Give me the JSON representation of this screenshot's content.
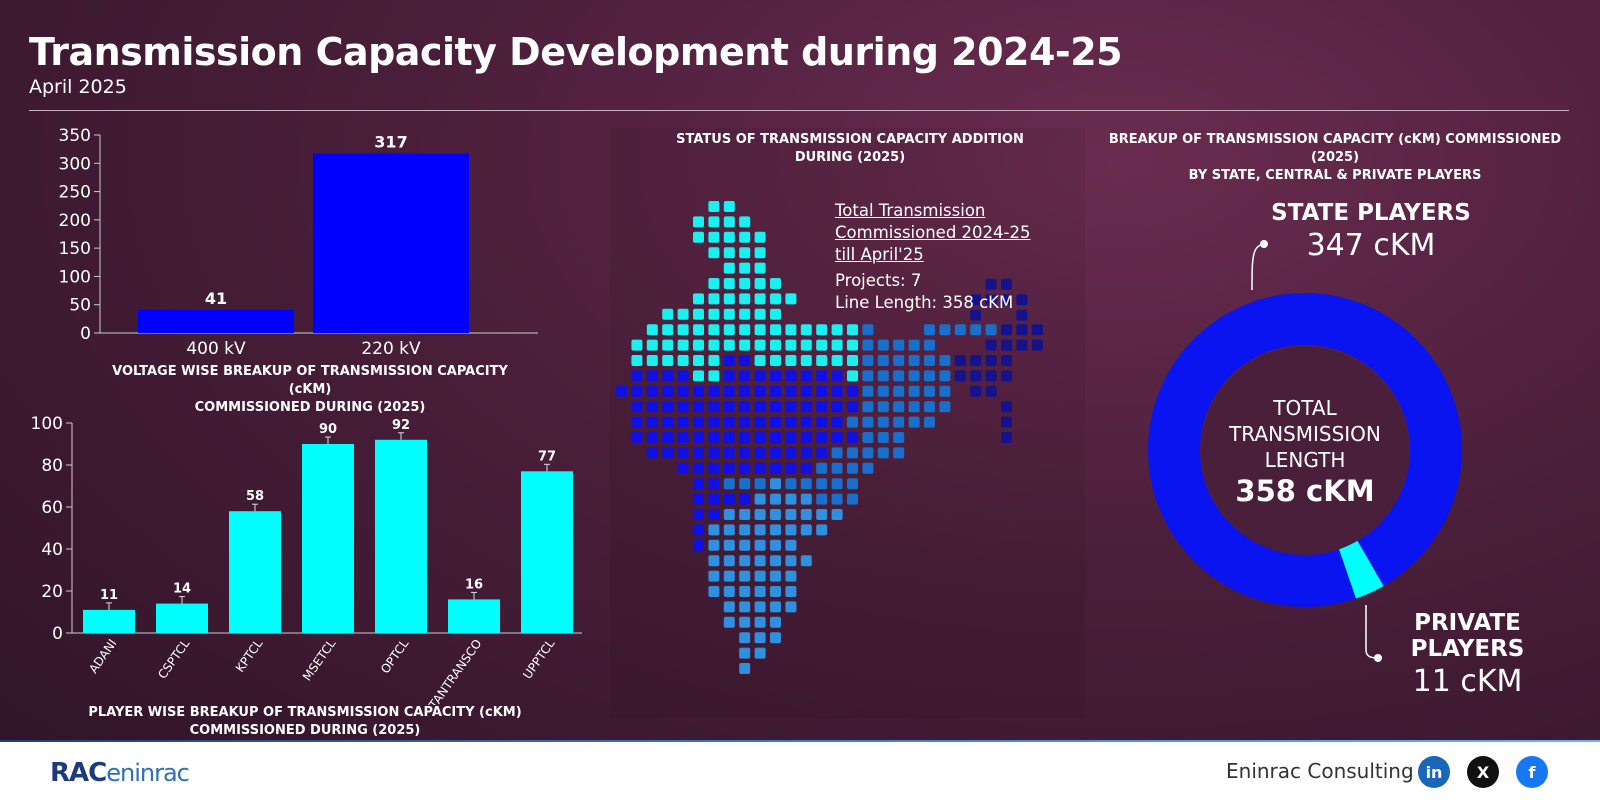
{
  "header": {
    "title": "Transmission Capacity Development during 2024-25",
    "subtitle": "April 2025"
  },
  "voltage_chart": {
    "caption_line1": "VOLTAGE WISE BREAKUP OF TRANSMISSION CAPACITY (cKM)",
    "caption_line2": "COMMISSIONED DURING (2025)"
  },
  "player_chart": {
    "caption_line1": "PLAYER WISE BREAKUP OF TRANSMISSION CAPACITY (cKM)",
    "caption_line2": "COMMISSIONED DURING (2025)"
  },
  "map": {
    "title_line1": "STATUS OF TRANSMISSION CAPACITY ADDITION",
    "title_line2": "DURING (2025)",
    "heading_line1": "Total Transmission",
    "heading_line2": "Commissioned 2024-25",
    "heading_line3": "till April'25",
    "projects": "Projects: 7",
    "line_length": "Line Length: 358 cKM"
  },
  "donut": {
    "title_line1": "BREAKUP OF TRANSMISSION CAPACITY (cKM) COMMISSIONED (2025)",
    "title_line2": "BY STATE, CENTRAL & PRIVATE PLAYERS",
    "center_line1": "TOTAL",
    "center_line2": "TRANSMISSION",
    "center_line3": "LENGTH",
    "center_value": "358 cKM",
    "state_label": "STATE PLAYERS",
    "state_value": "347 cKM",
    "private_label": "PRIVATE PLAYERS",
    "private_value": "11 cKM"
  },
  "footer": {
    "logo_bold": "RAC",
    "logo_lite": "eninrac",
    "brand": "Eninrac Consulting",
    "linkedin": "in",
    "x": "X",
    "facebook": "f"
  },
  "colors": {
    "bar_blue": "#0000ff",
    "bar_cyan": "#00ffff",
    "state_segment": "#0a14f0",
    "private_segment": "#00ffff"
  },
  "chart_data": [
    {
      "type": "bar",
      "categories": [
        "400 kV",
        "220 kV"
      ],
      "values": [
        41,
        317
      ],
      "ylim": [
        0,
        350
      ],
      "yticks": [
        0,
        50,
        100,
        150,
        200,
        250,
        300,
        350
      ],
      "title": "VOLTAGE WISE BREAKUP OF TRANSMISSION CAPACITY (cKM) COMMISSIONED DURING (2025)"
    },
    {
      "type": "bar",
      "categories": [
        "ADANI",
        "CSPTCL",
        "KPTCL",
        "MSETCL",
        "OPTCL",
        "TANTRANSCO",
        "UPPTCL"
      ],
      "values": [
        11,
        14,
        58,
        90,
        92,
        16,
        77
      ],
      "ylim": [
        0,
        100
      ],
      "yticks": [
        0,
        20,
        40,
        60,
        80,
        100
      ],
      "error_bars": true,
      "title": "PLAYER WISE BREAKUP OF TRANSMISSION CAPACITY (cKM) COMMISSIONED DURING (2025)"
    },
    {
      "type": "pie",
      "categories": [
        "STATE PLAYERS",
        "PRIVATE PLAYERS"
      ],
      "values": [
        347,
        11
      ],
      "total": 358,
      "title": "BREAKUP OF TRANSMISSION CAPACITY (cKM) COMMISSIONED (2025) BY STATE, CENTRAL & PRIVATE PLAYERS"
    }
  ]
}
